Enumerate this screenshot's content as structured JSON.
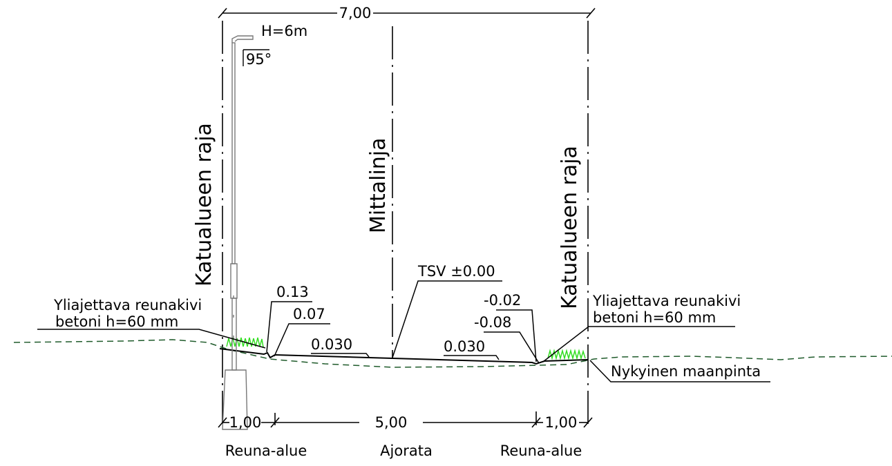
{
  "dimensions": {
    "total_width": "7,00",
    "left_edge_width": "1,00",
    "carriageway_width": "5,00",
    "right_edge_width": "1,00"
  },
  "pole": {
    "height": "H=6m",
    "angle": "95°"
  },
  "labels": {
    "left_boundary": "Katualueen raja",
    "right_boundary": "Katualueen raja",
    "centerline": "Mittalinja",
    "design_level": "TSV ±0.00",
    "left_curb_line1": "Yliajettava reunakivi",
    "left_curb_line2": "betoni h=60 mm",
    "right_curb_line1": "Yliajettava reunakivi",
    "right_curb_line2": "betoni h=60 mm",
    "existing_ground": "Nykyinen maanpinta"
  },
  "levels": {
    "left_top": "0.13",
    "left_bottom": "0.07",
    "right_top": "-0.02",
    "right_bottom": "-0.08"
  },
  "slopes": {
    "left": "0.030",
    "right": "0.030"
  },
  "zones": {
    "left": "Reuna-alue",
    "center": "Ajorata",
    "right": "Reuna-alue"
  },
  "colors": {
    "line": "#000000",
    "ground": "#1e5a2a",
    "grass": "#33dd22",
    "pole": "#777777"
  }
}
